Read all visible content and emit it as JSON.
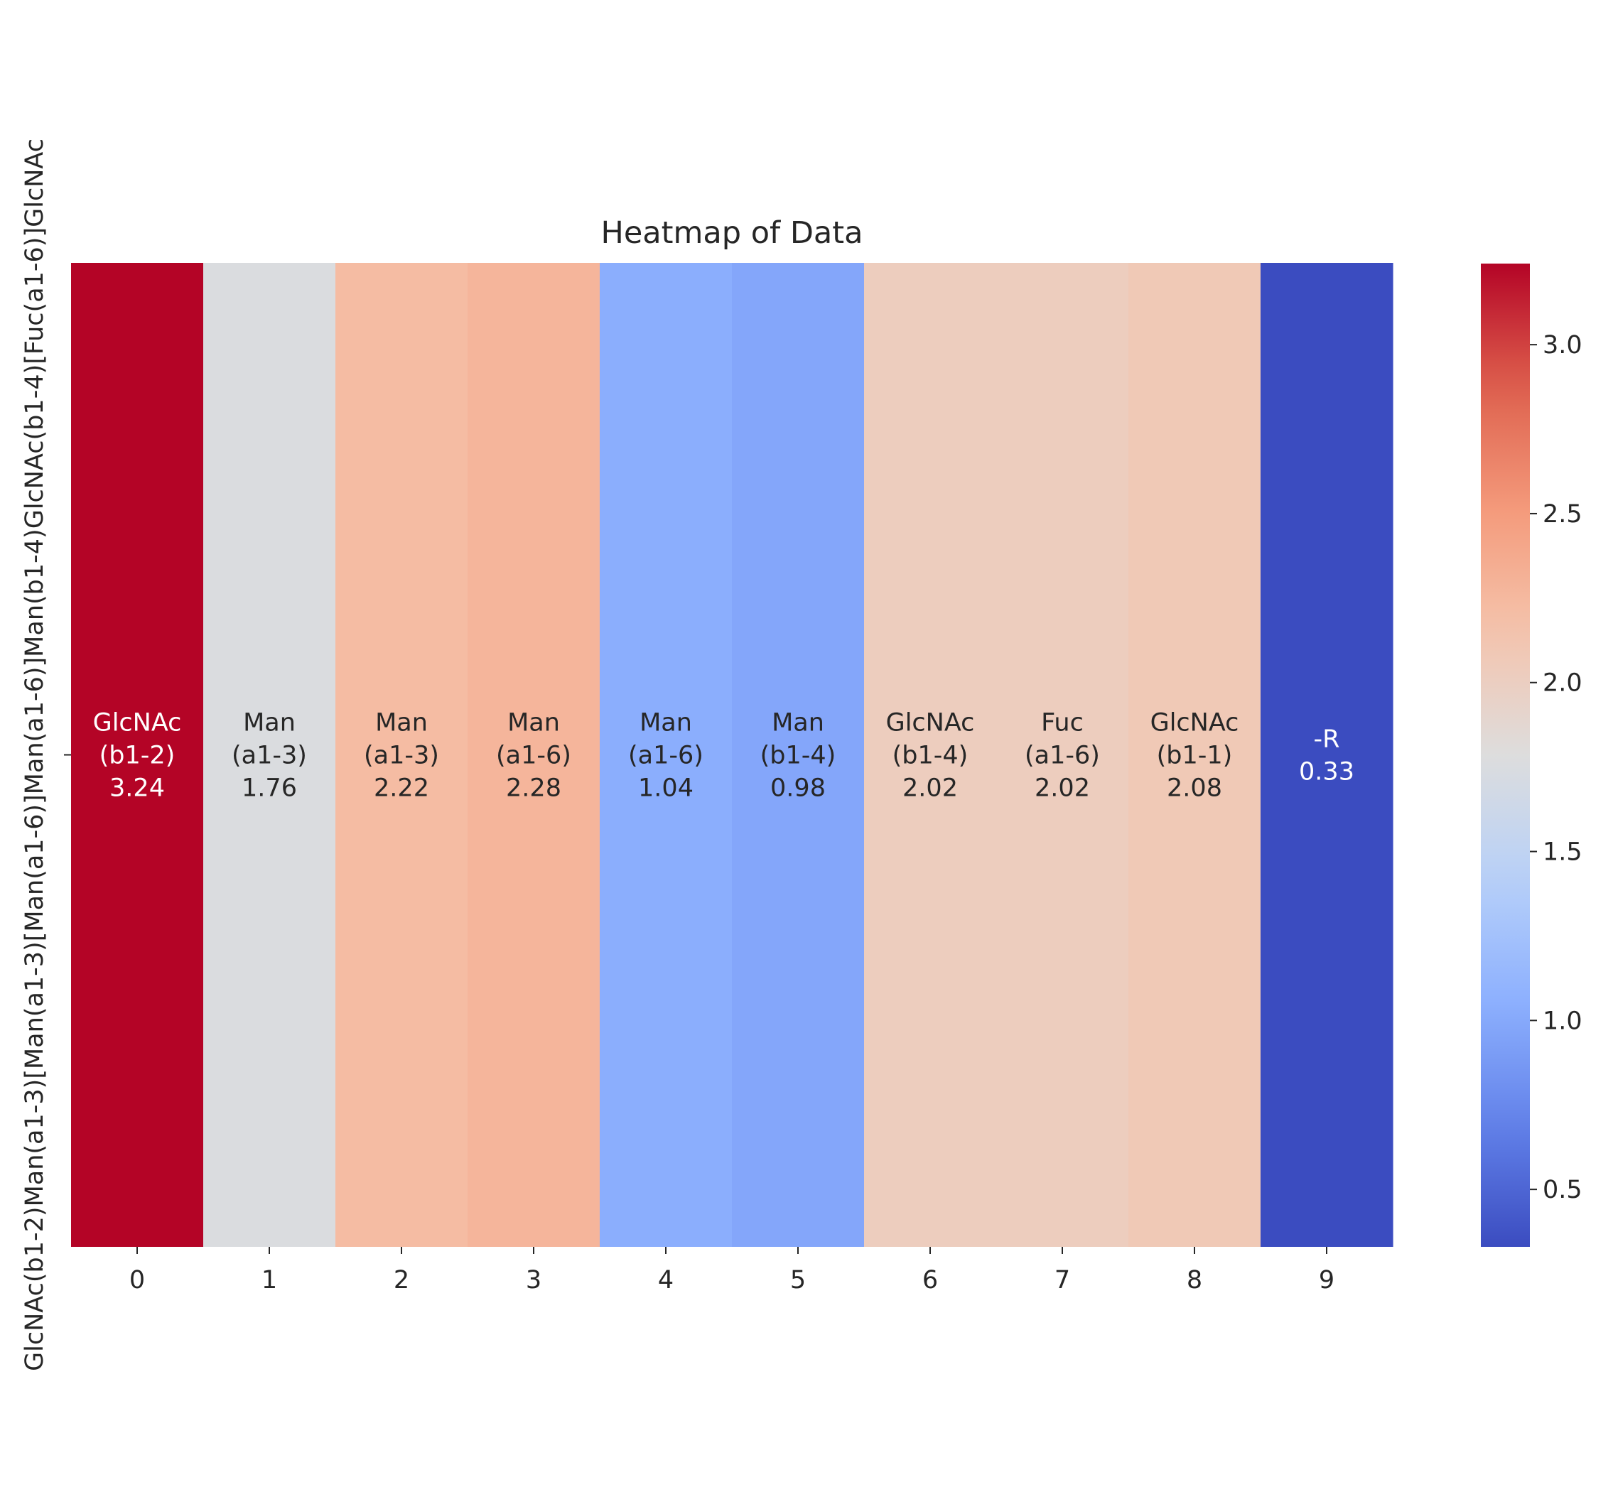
{
  "chart_data": {
    "type": "heatmap",
    "title": "Heatmap of Data",
    "row_labels": [
      "GlcNAc(b1-2)Man(a1-3)[Man(a1-3)[Man(a1-6)]Man(a1-6)]Man(b1-4)GlcNAc(b1-4)[Fuc(a1-6)]GlcNAc"
    ],
    "columns": [
      "0",
      "1",
      "2",
      "3",
      "4",
      "5",
      "6",
      "7",
      "8",
      "9"
    ],
    "cells": [
      {
        "col": "0",
        "label": [
          "GlcNAc",
          "(b1-2)"
        ],
        "value": 3.24
      },
      {
        "col": "1",
        "label": [
          "Man",
          "(a1-3)"
        ],
        "value": 1.76
      },
      {
        "col": "2",
        "label": [
          "Man",
          "(a1-3)"
        ],
        "value": 2.22
      },
      {
        "col": "3",
        "label": [
          "Man",
          "(a1-6)"
        ],
        "value": 2.28
      },
      {
        "col": "4",
        "label": [
          "Man",
          "(a1-6)"
        ],
        "value": 1.04
      },
      {
        "col": "5",
        "label": [
          "Man",
          "(b1-4)"
        ],
        "value": 0.98
      },
      {
        "col": "6",
        "label": [
          "GlcNAc",
          "(b1-4)"
        ],
        "value": 2.02
      },
      {
        "col": "7",
        "label": [
          "Fuc",
          "(a1-6)"
        ],
        "value": 2.02
      },
      {
        "col": "8",
        "label": [
          "GlcNAc",
          "(b1-1)"
        ],
        "value": 2.08
      },
      {
        "col": "9",
        "label": [
          "-R"
        ],
        "value": 0.33
      }
    ],
    "colormap": "coolwarm",
    "colorbar": {
      "range": [
        0.33,
        3.24
      ],
      "ticks": [
        0.5,
        1.0,
        1.5,
        2.0,
        2.5,
        3.0
      ],
      "tick_labels": [
        "0.5",
        "1.0",
        "1.5",
        "2.0",
        "2.5",
        "3.0"
      ]
    },
    "grid": false,
    "legend": "colorbar-right"
  }
}
